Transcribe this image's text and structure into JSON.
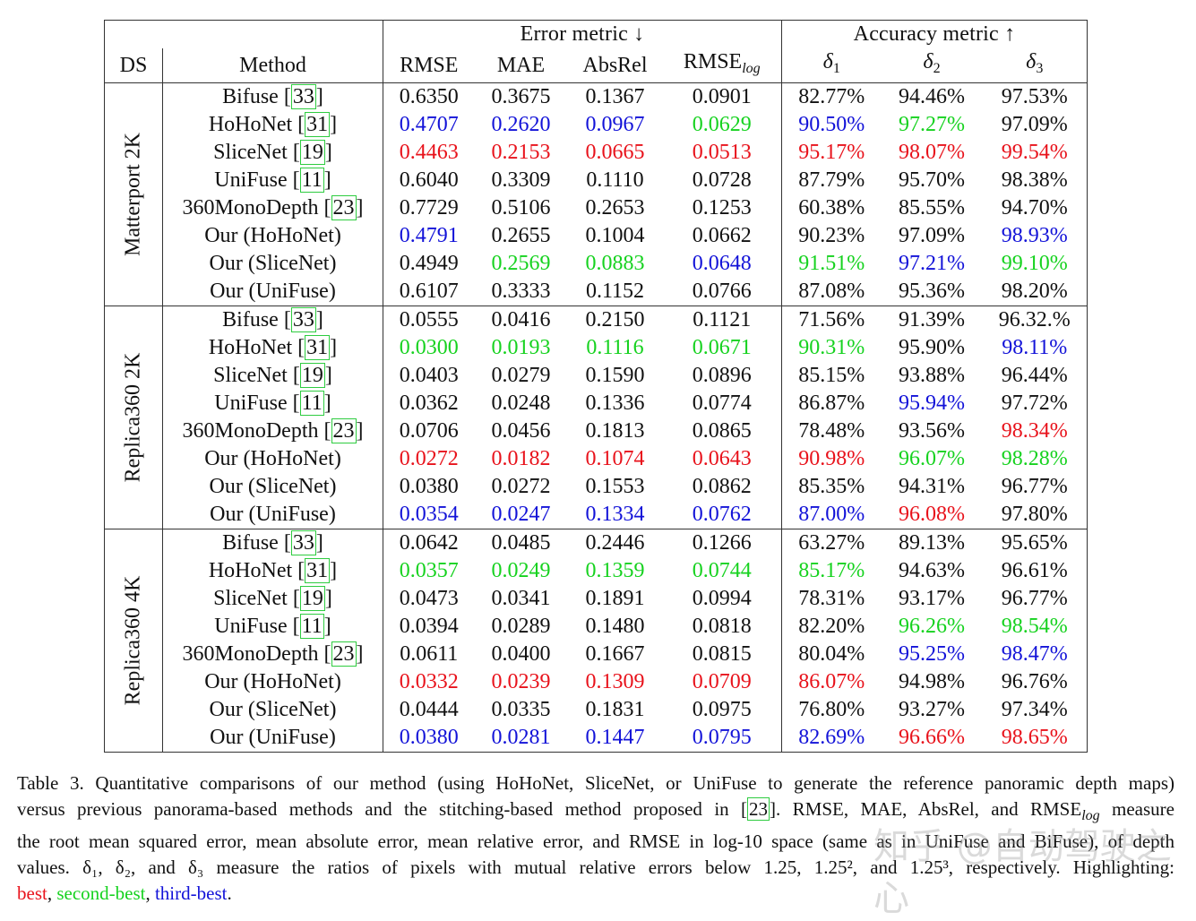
{
  "header": {
    "error_group": "Error metric ↓",
    "accuracy_group": "Accuracy metric ↑",
    "ds": "DS",
    "method": "Method",
    "cols": [
      "RMSE",
      "MAE",
      "AbsRel",
      "RMSE"
    ],
    "rmse_log_sub": "log",
    "deltas": [
      "δ",
      "δ",
      "δ"
    ],
    "delta_subs": [
      "1",
      "2",
      "3"
    ]
  },
  "colors": {
    "best": "#e8121b",
    "second": "#16d21f",
    "third": "#1212d8"
  },
  "datasets": [
    {
      "name": "Matterport 2K",
      "rows": [
        {
          "method": "Bifuse ",
          "ref": "33",
          "v": [
            "0.6350",
            "0.3675",
            "0.1367",
            "0.0901",
            "82.77%",
            "94.46%",
            "97.53%"
          ],
          "c": [
            "",
            "",
            "",
            "",
            "",
            "",
            ""
          ]
        },
        {
          "method": "HoHoNet ",
          "ref": "31",
          "v": [
            "0.4707",
            "0.2620",
            "0.0967",
            "0.0629",
            "90.50%",
            "97.27%",
            "97.09%"
          ],
          "c": [
            "b",
            "b",
            "b",
            "g",
            "b",
            "g",
            ""
          ]
        },
        {
          "method": "SliceNet ",
          "ref": "19",
          "v": [
            "0.4463",
            "0.2153",
            "0.0665",
            "0.0513",
            "95.17%",
            "98.07%",
            "99.54%"
          ],
          "c": [
            "r",
            "r",
            "r",
            "r",
            "r",
            "r",
            "r"
          ]
        },
        {
          "method": "UniFuse ",
          "ref": "11",
          "v": [
            "0.6040",
            "0.3309",
            "0.1110",
            "0.0728",
            "87.79%",
            "95.70%",
            "98.38%"
          ],
          "c": [
            "",
            "",
            "",
            "",
            "",
            "",
            ""
          ]
        },
        {
          "method": "360MonoDepth ",
          "ref": "23",
          "v": [
            "0.7729",
            "0.5106",
            "0.2653",
            "0.1253",
            "60.38%",
            "85.55%",
            "94.70%"
          ],
          "c": [
            "",
            "",
            "",
            "",
            "",
            "",
            ""
          ]
        },
        {
          "method": "Our (HoHoNet)",
          "ref": "",
          "v": [
            "0.4791",
            "0.2655",
            "0.1004",
            "0.0662",
            "90.23%",
            "97.09%",
            "98.93%"
          ],
          "c": [
            "b",
            "",
            "",
            "",
            "",
            "",
            "b"
          ]
        },
        {
          "method": "Our (SliceNet)",
          "ref": "",
          "v": [
            "0.4949",
            "0.2569",
            "0.0883",
            "0.0648",
            "91.51%",
            "97.21%",
            "99.10%"
          ],
          "c": [
            "",
            "g",
            "g",
            "b",
            "g",
            "b",
            "g"
          ]
        },
        {
          "method": "Our (UniFuse)",
          "ref": "",
          "v": [
            "0.6107",
            "0.3333",
            "0.1152",
            "0.0766",
            "87.08%",
            "95.36%",
            "98.20%"
          ],
          "c": [
            "",
            "",
            "",
            "",
            "",
            "",
            ""
          ]
        }
      ]
    },
    {
      "name": "Replica360 2K",
      "rows": [
        {
          "method": "Bifuse ",
          "ref": "33",
          "v": [
            "0.0555",
            "0.0416",
            "0.2150",
            "0.1121",
            "71.56%",
            "91.39%",
            "96.32.%"
          ],
          "c": [
            "",
            "",
            "",
            "",
            "",
            "",
            ""
          ]
        },
        {
          "method": "HoHoNet ",
          "ref": "31",
          "v": [
            "0.0300",
            "0.0193",
            "0.1116",
            "0.0671",
            "90.31%",
            "95.90%",
            "98.11%"
          ],
          "c": [
            "g",
            "g",
            "g",
            "g",
            "g",
            "",
            "b"
          ]
        },
        {
          "method": "SliceNet ",
          "ref": "19",
          "v": [
            "0.0403",
            "0.0279",
            "0.1590",
            "0.0896",
            "85.15%",
            "93.88%",
            "96.44%"
          ],
          "c": [
            "",
            "",
            "",
            "",
            "",
            "",
            ""
          ]
        },
        {
          "method": "UniFuse ",
          "ref": "11",
          "v": [
            "0.0362",
            "0.0248",
            "0.1336",
            "0.0774",
            "86.87%",
            "95.94%",
            "97.72%"
          ],
          "c": [
            "",
            "",
            "",
            "",
            "",
            "b",
            ""
          ]
        },
        {
          "method": "360MonoDepth ",
          "ref": "23",
          "v": [
            "0.0706",
            "0.0456",
            "0.1813",
            "0.0865",
            "78.48%",
            "93.56%",
            "98.34%"
          ],
          "c": [
            "",
            "",
            "",
            "",
            "",
            "",
            "r"
          ]
        },
        {
          "method": "Our (HoHoNet)",
          "ref": "",
          "v": [
            "0.0272",
            "0.0182",
            "0.1074",
            "0.0643",
            "90.98%",
            "96.07%",
            "98.28%"
          ],
          "c": [
            "r",
            "r",
            "r",
            "r",
            "r",
            "g",
            "g"
          ]
        },
        {
          "method": "Our (SliceNet)",
          "ref": "",
          "v": [
            "0.0380",
            "0.0272",
            "0.1553",
            "0.0862",
            "85.35%",
            "94.31%",
            "96.77%"
          ],
          "c": [
            "",
            "",
            "",
            "",
            "",
            "",
            ""
          ]
        },
        {
          "method": "Our (UniFuse)",
          "ref": "",
          "v": [
            "0.0354",
            "0.0247",
            "0.1334",
            "0.0762",
            "87.00%",
            "96.08%",
            "97.80%"
          ],
          "c": [
            "b",
            "b",
            "b",
            "b",
            "b",
            "r",
            ""
          ]
        }
      ]
    },
    {
      "name": "Replica360 4K",
      "rows": [
        {
          "method": "Bifuse ",
          "ref": "33",
          "v": [
            "0.0642",
            "0.0485",
            "0.2446",
            "0.1266",
            "63.27%",
            "89.13%",
            "95.65%"
          ],
          "c": [
            "",
            "",
            "",
            "",
            "",
            "",
            ""
          ]
        },
        {
          "method": "HoHoNet ",
          "ref": "31",
          "v": [
            "0.0357",
            "0.0249",
            "0.1359",
            "0.0744",
            "85.17%",
            "94.63%",
            "96.61%"
          ],
          "c": [
            "g",
            "g",
            "g",
            "g",
            "g",
            "",
            ""
          ]
        },
        {
          "method": "SliceNet ",
          "ref": "19",
          "v": [
            "0.0473",
            "0.0341",
            "0.1891",
            "0.0994",
            "78.31%",
            "93.17%",
            "96.77%"
          ],
          "c": [
            "",
            "",
            "",
            "",
            "",
            "",
            ""
          ]
        },
        {
          "method": "UniFuse ",
          "ref": "11",
          "v": [
            "0.0394",
            "0.0289",
            "0.1480",
            "0.0818",
            "82.20%",
            "96.26%",
            "98.54%"
          ],
          "c": [
            "",
            "",
            "",
            "",
            "",
            "g",
            "g"
          ]
        },
        {
          "method": "360MonoDepth ",
          "ref": "23",
          "v": [
            "0.0611",
            "0.0400",
            "0.1667",
            "0.0815",
            "80.04%",
            "95.25%",
            "98.47%"
          ],
          "c": [
            "",
            "",
            "",
            "",
            "",
            "b",
            "b"
          ]
        },
        {
          "method": "Our (HoHoNet)",
          "ref": "",
          "v": [
            "0.0332",
            "0.0239",
            "0.1309",
            "0.0709",
            "86.07%",
            "94.98%",
            "96.76%"
          ],
          "c": [
            "r",
            "r",
            "r",
            "r",
            "r",
            "",
            ""
          ]
        },
        {
          "method": "Our (SliceNet)",
          "ref": "",
          "v": [
            "0.0444",
            "0.0335",
            "0.1831",
            "0.0975",
            "76.80%",
            "93.27%",
            "97.34%"
          ],
          "c": [
            "",
            "",
            "",
            "",
            "",
            "",
            ""
          ]
        },
        {
          "method": "Our (UniFuse)",
          "ref": "",
          "v": [
            "0.0380",
            "0.0281",
            "0.1447",
            "0.0795",
            "82.69%",
            "96.66%",
            "98.65%"
          ],
          "c": [
            "b",
            "b",
            "b",
            "b",
            "b",
            "r",
            "r"
          ]
        }
      ]
    }
  ],
  "caption": {
    "l1": "Table 3. Quantitative comparisons of our method (using HoHoNet, SliceNet, or UniFuse to generate the reference panoramic depth maps)",
    "l2a": "versus previous panorama-based methods and the stitching-based method proposed in ",
    "l2ref": "23",
    "l2b": ". RMSE, MAE, AbsRel, and RMSE",
    "l2sub": "log",
    "l2c": " measure",
    "l3": "the root mean squared error, mean absolute error, mean relative error, and RMSE in log-10 space (same as in UniFuse and BiFuse), of depth",
    "l4": "values. δ₁, δ₂, and δ₃ measure the ratios of pixels with mutual relative errors below 1.25, 1.25², and 1.25³, respectively. Highlighting:",
    "best": "best",
    "second": "second-best",
    "third": "third-best",
    "sep": ", ",
    "end": "."
  },
  "watermark": "知乎 @自动驾驶之心"
}
